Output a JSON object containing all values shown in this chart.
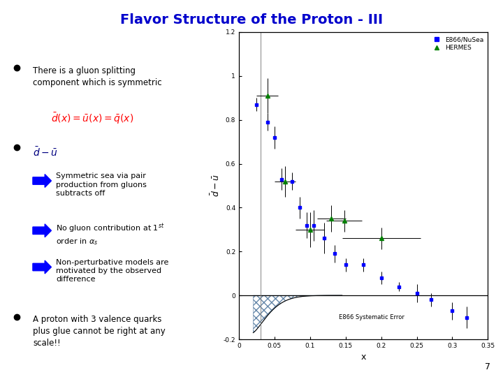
{
  "title": "Flavor Structure of the Proton - III",
  "title_color": "#0000CC",
  "title_fontsize": 14,
  "bg_color": "#FFFFFF",
  "slide_number": "7",
  "e866_x": [
    0.025,
    0.04,
    0.05,
    0.06,
    0.075,
    0.085,
    0.095,
    0.105,
    0.12,
    0.135,
    0.15,
    0.175,
    0.2,
    0.225,
    0.25,
    0.27,
    0.3,
    0.32
  ],
  "e866_y": [
    0.87,
    0.79,
    0.72,
    0.53,
    0.52,
    0.4,
    0.32,
    0.32,
    0.26,
    0.19,
    0.14,
    0.14,
    0.08,
    0.04,
    0.01,
    -0.02,
    -0.07,
    -0.1
  ],
  "e866_yerr": [
    0.03,
    0.04,
    0.05,
    0.05,
    0.04,
    0.05,
    0.06,
    0.07,
    0.07,
    0.04,
    0.03,
    0.03,
    0.03,
    0.02,
    0.04,
    0.03,
    0.04,
    0.05
  ],
  "hermes_x": [
    0.04,
    0.065,
    0.1,
    0.13,
    0.148,
    0.2
  ],
  "hermes_y": [
    0.91,
    0.52,
    0.3,
    0.35,
    0.34,
    0.26
  ],
  "hermes_xerr": [
    0.015,
    0.015,
    0.02,
    0.02,
    0.025,
    0.055
  ],
  "hermes_yerr": [
    0.08,
    0.07,
    0.08,
    0.06,
    0.05,
    0.05
  ],
  "xlim": [
    0.0,
    0.35
  ],
  "ylim": [
    -0.2,
    1.2
  ],
  "xlabel": "x",
  "yticks": [
    -0.2,
    0.0,
    0.2,
    0.4,
    0.6,
    0.8,
    1.0,
    1.2
  ],
  "ytick_labels": [
    "-0.2",
    "0",
    "0.2",
    "0.4",
    "0.6",
    "0.8",
    "1",
    "1.2"
  ],
  "xticks": [
    0.0,
    0.05,
    0.1,
    0.15,
    0.2,
    0.25,
    0.3,
    0.35
  ],
  "xtick_labels": [
    "0",
    "0.05",
    "0.1",
    "0.15",
    "0.2",
    "0.25",
    "0.3",
    "0.35"
  ],
  "e866_color": "#0000FF",
  "hermes_color": "#008000",
  "text_color": "#000080",
  "arrow_color": "#0000FF",
  "vline_x": 0.03
}
